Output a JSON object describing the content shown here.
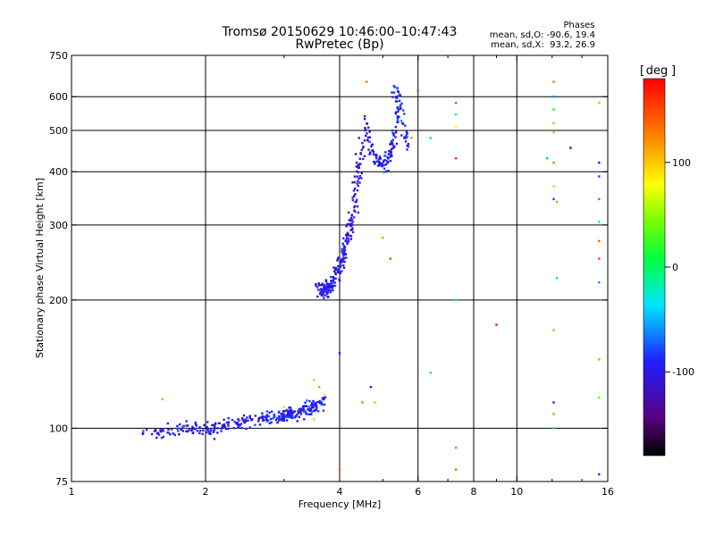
{
  "header": {
    "title": "Tromsø 20150629 10:46:00–10:47:43",
    "subtitle": "RwPretec (Bp)"
  },
  "stats": {
    "heading": "Phases",
    "line_o": "mean, sd,O: -90.6, 19.4",
    "line_x": "mean, sd,X:  93.2, 26.9"
  },
  "colorbar": {
    "label": "deg",
    "range": [
      -180,
      180
    ],
    "ticks": [
      {
        "value": 100,
        "label": "100"
      },
      {
        "value": 0,
        "label": "0"
      },
      {
        "value": -100,
        "label": "-100"
      }
    ]
  },
  "chart_data": {
    "type": "scatter",
    "title": "Tromsø 20150629 10:46:00–10:47:43",
    "subtitle": "RwPretec (Bp)",
    "xlabel": "Frequency [MHz]",
    "ylabel": "Stationary phase Virtual Height [km]",
    "xscale": "log",
    "yscale": "log",
    "xlim": [
      1,
      16
    ],
    "ylim": [
      75,
      750
    ],
    "xticks": [
      {
        "value": 1,
        "label": "1"
      },
      {
        "value": 2,
        "label": "2"
      },
      {
        "value": 4,
        "label": "4"
      },
      {
        "value": 6,
        "label": "6"
      },
      {
        "value": 8,
        "label": "8"
      },
      {
        "value": 10,
        "label": "10"
      },
      {
        "value": 16,
        "label": "16"
      }
    ],
    "yticks": [
      {
        "value": 75,
        "label": "75"
      },
      {
        "value": 100,
        "label": "100"
      },
      {
        "value": 200,
        "label": "200"
      },
      {
        "value": 300,
        "label": "300"
      },
      {
        "value": 400,
        "label": "400"
      },
      {
        "value": 500,
        "label": "500"
      },
      {
        "value": 600,
        "label": "600"
      },
      {
        "value": 750,
        "label": "750"
      }
    ],
    "grid_x": [
      2,
      4,
      6,
      8,
      10
    ],
    "grid_y": [
      100,
      200,
      300,
      400,
      500,
      600
    ],
    "grid": true,
    "colorbar_label": "deg",
    "traces": [
      {
        "x": [
          1.45,
          1.6,
          1.75,
          1.9,
          2.0,
          2.1,
          2.25,
          2.4,
          2.55,
          2.7,
          2.85,
          3.0,
          3.1,
          3.2,
          3.3,
          3.4,
          3.5,
          3.6,
          3.7
        ],
        "y": [
          97,
          98,
          99,
          100,
          99,
          100,
          102,
          104,
          104,
          105,
          106,
          107,
          108,
          109,
          110,
          111,
          112,
          114,
          115
        ],
        "spread": 0.018,
        "n": 320,
        "phase_mean": -95,
        "phase_sd": 12
      },
      {
        "x": [
          3.6,
          3.65,
          3.7,
          3.75,
          3.8,
          3.85,
          3.9,
          3.95,
          4.0,
          4.05,
          4.1,
          4.15,
          4.2,
          4.25,
          4.3
        ],
        "y": [
          215,
          210,
          208,
          212,
          215,
          220,
          225,
          232,
          240,
          250,
          262,
          275,
          290,
          305,
          325
        ],
        "spread": 0.02,
        "n": 180,
        "phase_mean": -100,
        "phase_sd": 12
      },
      {
        "x": [
          4.3,
          4.35,
          4.4,
          4.45,
          4.5,
          4.55,
          4.6
        ],
        "y": [
          330,
          360,
          390,
          420,
          460,
          500,
          540
        ],
        "spread": 0.02,
        "n": 60,
        "phase_mean": -100,
        "phase_sd": 12
      },
      {
        "x": [
          4.6,
          4.7,
          4.8,
          4.9,
          5.0,
          5.1,
          5.2,
          5.3,
          5.4
        ],
        "y": [
          490,
          460,
          430,
          420,
          415,
          420,
          440,
          480,
          560
        ],
        "spread": 0.018,
        "n": 110,
        "phase_mean": -95,
        "phase_sd": 14
      },
      {
        "x": [
          5.3,
          5.4,
          5.5,
          5.6,
          5.7
        ],
        "y": [
          600,
          620,
          560,
          500,
          450
        ],
        "spread": 0.02,
        "n": 45,
        "phase_mean": -90,
        "phase_sd": 15
      }
    ],
    "scatter_points": [
      {
        "x": 1.6,
        "y": 117,
        "phase": 110
      },
      {
        "x": 3.5,
        "y": 130,
        "phase": 100
      },
      {
        "x": 3.6,
        "y": 125,
        "phase": 120
      },
      {
        "x": 3.7,
        "y": 120,
        "phase": 90
      },
      {
        "x": 3.5,
        "y": 105,
        "phase": 100
      },
      {
        "x": 3.0,
        "y": 112,
        "phase": 60
      },
      {
        "x": 4.0,
        "y": 150,
        "phase": -100
      },
      {
        "x": 4.0,
        "y": 80,
        "phase": 140
      },
      {
        "x": 4.5,
        "y": 115,
        "phase": 130
      },
      {
        "x": 4.7,
        "y": 125,
        "phase": -95
      },
      {
        "x": 4.8,
        "y": 115,
        "phase": 40
      },
      {
        "x": 5.0,
        "y": 280,
        "phase": 120
      },
      {
        "x": 5.2,
        "y": 250,
        "phase": 150
      },
      {
        "x": 4.6,
        "y": 650,
        "phase": 130
      },
      {
        "x": 5.8,
        "y": 480,
        "phase": 120
      },
      {
        "x": 6.0,
        "y": 620,
        "phase": 150
      },
      {
        "x": 6.4,
        "y": 135,
        "phase": -40
      },
      {
        "x": 6.4,
        "y": 480,
        "phase": 0
      },
      {
        "x": 7.3,
        "y": 580,
        "phase": 150
      },
      {
        "x": 7.3,
        "y": 545,
        "phase": -10
      },
      {
        "x": 7.3,
        "y": 510,
        "phase": 80
      },
      {
        "x": 7.3,
        "y": 430,
        "phase": 160
      },
      {
        "x": 7.3,
        "y": 200,
        "phase": 20
      },
      {
        "x": 7.3,
        "y": 90,
        "phase": 130
      },
      {
        "x": 7.3,
        "y": 80,
        "phase": 140
      },
      {
        "x": 9.0,
        "y": 175,
        "phase": 170
      },
      {
        "x": 12.1,
        "y": 650,
        "phase": 130
      },
      {
        "x": 12.1,
        "y": 600,
        "phase": -60
      },
      {
        "x": 12.1,
        "y": 560,
        "phase": 10
      },
      {
        "x": 12.1,
        "y": 520,
        "phase": 110
      },
      {
        "x": 12.1,
        "y": 495,
        "phase": 40
      },
      {
        "x": 12.1,
        "y": 420,
        "phase": 130
      },
      {
        "x": 12.1,
        "y": 370,
        "phase": 50
      },
      {
        "x": 12.1,
        "y": 345,
        "phase": -80
      },
      {
        "x": 12.1,
        "y": 170,
        "phase": 110
      },
      {
        "x": 12.1,
        "y": 115,
        "phase": -100
      },
      {
        "x": 12.1,
        "y": 108,
        "phase": 120
      },
      {
        "x": 12.1,
        "y": 100,
        "phase": -10
      },
      {
        "x": 11.7,
        "y": 430,
        "phase": -50
      },
      {
        "x": 12.3,
        "y": 340,
        "phase": 120
      },
      {
        "x": 12.3,
        "y": 225,
        "phase": -40
      },
      {
        "x": 13.2,
        "y": 455,
        "phase": -140
      },
      {
        "x": 15.3,
        "y": 580,
        "phase": 110
      },
      {
        "x": 15.3,
        "y": 420,
        "phase": -100
      },
      {
        "x": 15.3,
        "y": 390,
        "phase": -80
      },
      {
        "x": 15.3,
        "y": 345,
        "phase": -60
      },
      {
        "x": 15.3,
        "y": 305,
        "phase": -20
      },
      {
        "x": 15.3,
        "y": 275,
        "phase": 140
      },
      {
        "x": 15.3,
        "y": 250,
        "phase": 150
      },
      {
        "x": 15.3,
        "y": 220,
        "phase": -60
      },
      {
        "x": 15.3,
        "y": 145,
        "phase": 120
      },
      {
        "x": 15.3,
        "y": 118,
        "phase": 30
      },
      {
        "x": 15.3,
        "y": 78,
        "phase": -90
      }
    ]
  }
}
